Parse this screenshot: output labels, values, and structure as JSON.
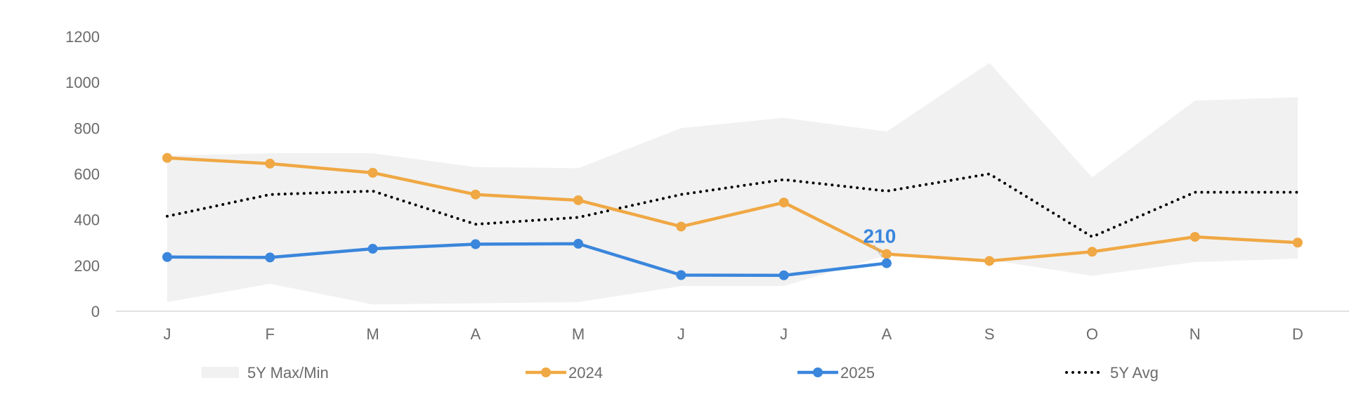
{
  "chart_data": {
    "type": "line",
    "categories": [
      "J",
      "F",
      "M",
      "A",
      "M",
      "J",
      "J",
      "A",
      "S",
      "O",
      "N",
      "D"
    ],
    "y_ticks": [
      0,
      200,
      400,
      600,
      800,
      1000,
      1200
    ],
    "ylim": [
      0,
      1200
    ],
    "grid": false,
    "legend_position": "bottom",
    "band": {
      "name": "5Y Max/Min",
      "color": "#f1f1f1",
      "max": [
        680,
        690,
        690,
        630,
        625,
        800,
        845,
        785,
        1085,
        585,
        920,
        935
      ],
      "min": [
        40,
        120,
        30,
        35,
        40,
        110,
        110,
        245,
        225,
        155,
        215,
        230
      ]
    },
    "series": [
      {
        "name": "2024",
        "color": "#f0a844",
        "style": "solid",
        "values": [
          670,
          645,
          605,
          510,
          485,
          370,
          475,
          250,
          220,
          260,
          325,
          300
        ]
      },
      {
        "name": "2025",
        "color": "#3a86dc",
        "style": "solid",
        "values": [
          237,
          235,
          273,
          293,
          295,
          158,
          157,
          210,
          null,
          null,
          null,
          null
        ]
      },
      {
        "name": "5Y Avg",
        "color": "#000000",
        "style": "dotted",
        "values": [
          415,
          510,
          525,
          380,
          410,
          510,
          575,
          525,
          600,
          325,
          520,
          520
        ]
      }
    ],
    "annotations": [
      {
        "series": "2025",
        "category_index": 7,
        "text": "210",
        "color": "#3a86dc"
      }
    ]
  }
}
